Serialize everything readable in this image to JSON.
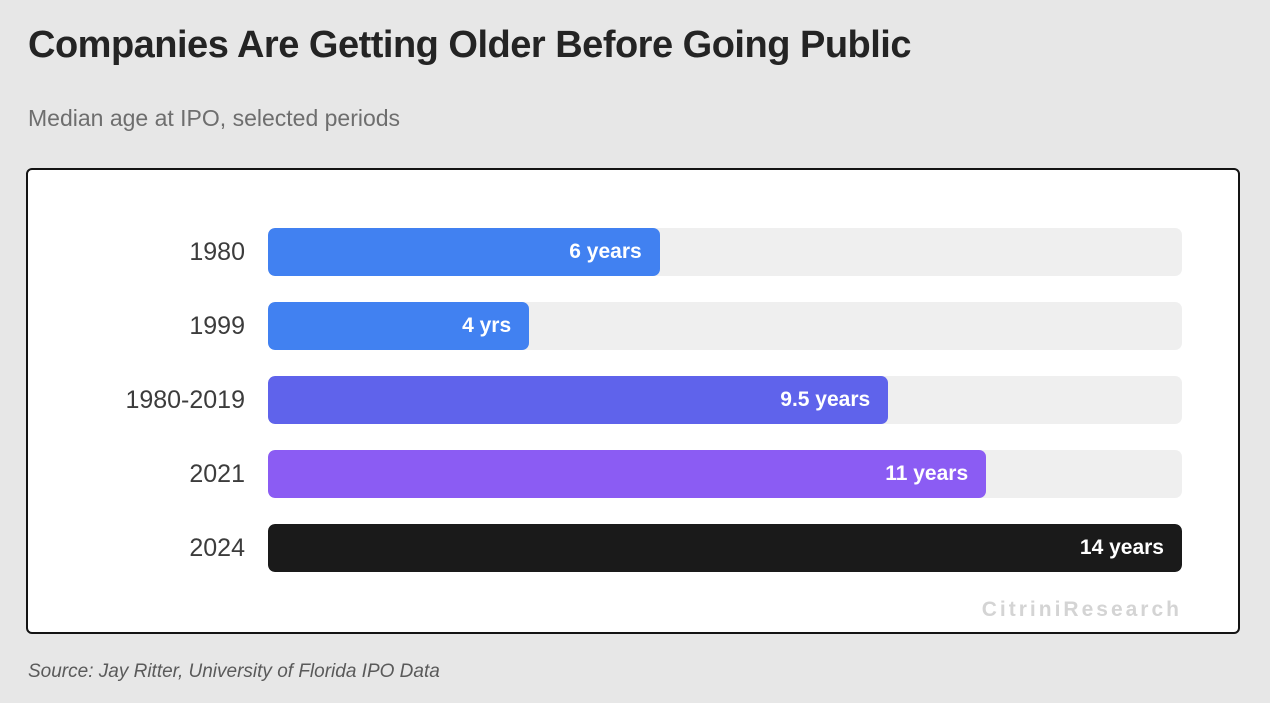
{
  "page": {
    "background": "#E7E7E7",
    "panel_border_color": "#141414",
    "panel_background": "#FFFFFF"
  },
  "chart_data": {
    "type": "bar",
    "orientation": "horizontal",
    "title": "Companies Are Getting Older Before Going Public",
    "subtitle": "Median age at IPO, selected periods",
    "categories": [
      "1980",
      "1999",
      "1980-2019",
      "2021",
      "2024"
    ],
    "values": [
      6,
      4,
      9.5,
      11,
      14
    ],
    "value_labels": [
      "6 years",
      "4 yrs",
      "9.5 years",
      "11 years",
      "14 years"
    ],
    "xlim": [
      0,
      14
    ],
    "grid": false,
    "legend": false,
    "track_color": "#EFEFEF",
    "value_label_color": "#FFFFFF",
    "rows": [
      {
        "label": "1980",
        "value": 6,
        "value_label": "6 years",
        "color": "#4181F1"
      },
      {
        "label": "1999",
        "value": 4,
        "value_label": "4 yrs",
        "color": "#4181F1"
      },
      {
        "label": "1980-2019",
        "value": 9.5,
        "value_label": "9.5 years",
        "color": "#5F63EB"
      },
      {
        "label": "2021",
        "value": 11,
        "value_label": "11 years",
        "color": "#8B5CF3"
      },
      {
        "label": "2024",
        "value": 14,
        "value_label": "14 years",
        "color": "#1A1A1A"
      }
    ]
  },
  "watermark": {
    "text": "CitriniResearch",
    "color": "#D4D4D4"
  },
  "source": {
    "text": "Source: Jay Ritter, University of Florida IPO Data"
  }
}
